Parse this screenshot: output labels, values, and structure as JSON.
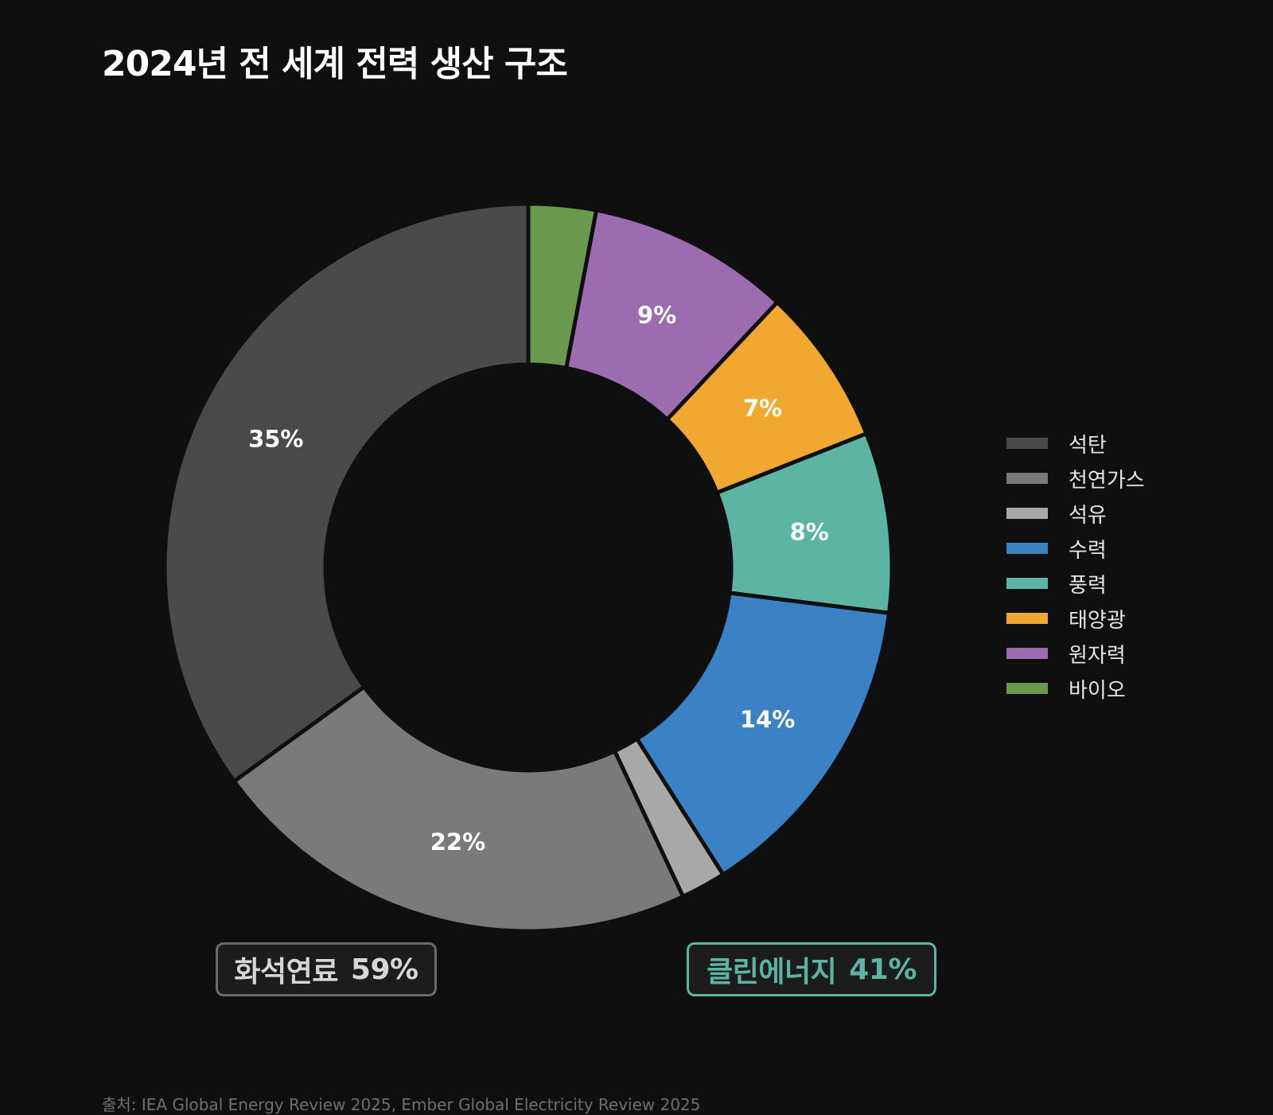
{
  "title": "2024년 전 세계 전력 생산 구조",
  "chart_data": {
    "type": "pie",
    "donut": true,
    "start": "top, clockwise",
    "title": "2024년 전 세계 전력 생산 구조",
    "slices": [
      {
        "name": "바이오",
        "value": 3,
        "label": "",
        "color": "#6a994e"
      },
      {
        "name": "원자력",
        "value": 9,
        "label": "9%",
        "color": "#9b6db0"
      },
      {
        "name": "태양광",
        "value": 7,
        "label": "7%",
        "color": "#f0a830"
      },
      {
        "name": "풍력",
        "value": 8,
        "label": "8%",
        "color": "#5bb5a2"
      },
      {
        "name": "수력",
        "value": 14,
        "label": "14%",
        "color": "#3b82c4"
      },
      {
        "name": "석유",
        "value": 2,
        "label": "",
        "color": "#a8a8a8"
      },
      {
        "name": "천연가스",
        "value": 22,
        "label": "22%",
        "color": "#7a7a7a"
      },
      {
        "name": "석탄",
        "value": 35,
        "label": "35%",
        "color": "#4a4a4a"
      }
    ],
    "legend": {
      "placement": "right",
      "items": [
        {
          "label": "석탄",
          "color": "#4a4a4a"
        },
        {
          "label": "천연가스",
          "color": "#7a7a7a"
        },
        {
          "label": "석유",
          "color": "#a8a8a8"
        },
        {
          "label": "수력",
          "color": "#3b82c4"
        },
        {
          "label": "풍력",
          "color": "#5bb5a2"
        },
        {
          "label": "태양광",
          "color": "#f0a830"
        },
        {
          "label": "원자력",
          "color": "#9b6db0"
        },
        {
          "label": "바이오",
          "color": "#6a994e"
        }
      ]
    },
    "groups": [
      {
        "name": "화석연료",
        "value": "59%",
        "color": "#d6d6d6"
      },
      {
        "name": "클린에너지",
        "value": "41%",
        "color": "#5bb5a2"
      }
    ]
  },
  "source": "출처: IEA Global Energy Review 2025, Ember Global Electricity Review 2025"
}
